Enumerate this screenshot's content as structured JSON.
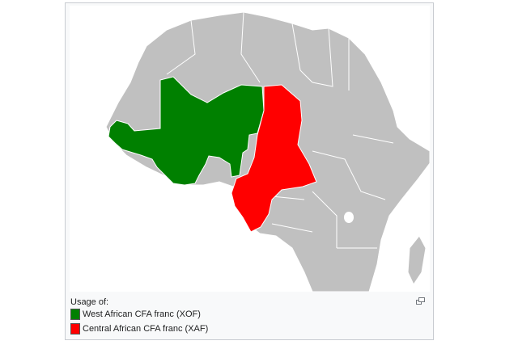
{
  "caption": {
    "title": "Usage of:",
    "legend": [
      {
        "label": "West African CFA franc (XOF)",
        "color": "#008000"
      },
      {
        "label": "Central African CFA franc (XAF)",
        "color": "#ff0000"
      }
    ]
  },
  "map": {
    "land_color": "#c0c0c0",
    "border_color": "#ffffff",
    "water_color": "#ffffff",
    "highlighted_regions": [
      {
        "group": "XOF",
        "color": "#008000"
      },
      {
        "group": "XAF",
        "color": "#ff0000"
      }
    ]
  },
  "icons": {
    "enlarge": "enlarge-icon"
  }
}
